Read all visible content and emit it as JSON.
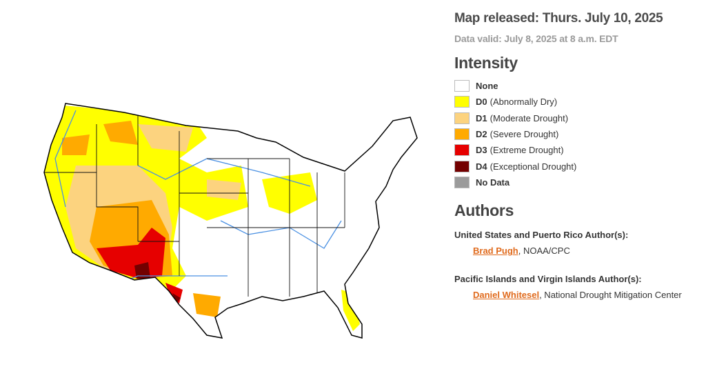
{
  "header": {
    "map_released": "Map released: Thurs. July 10, 2025",
    "data_valid": "Data valid: July 8, 2025 at 8 a.m. EDT"
  },
  "legend": {
    "title": "Intensity",
    "items": [
      {
        "code": "None",
        "color": "#ffffff"
      },
      {
        "code": "D0",
        "description": "(Abnormally Dry)",
        "color": "#ffff00"
      },
      {
        "code": "D1",
        "description": "(Moderate Drought)",
        "color": "#fcd37f"
      },
      {
        "code": "D2",
        "description": "(Severe Drought)",
        "color": "#ffaa00"
      },
      {
        "code": "D3",
        "description": "(Extreme Drought)",
        "color": "#e60000"
      },
      {
        "code": "D4",
        "description": "(Exceptional Drought)",
        "color": "#730000"
      },
      {
        "code": "No Data",
        "color": "#9b9b9b"
      }
    ]
  },
  "authors": {
    "title": "Authors",
    "sections": [
      {
        "label": "United States and Puerto Rico Author(s):",
        "name": "Brad Pugh",
        "affiliation": ", NOAA/CPC"
      },
      {
        "label": "Pacific Islands and Virgin Islands Author(s):",
        "name": "Daniel Whitesel",
        "affiliation": ", National Drought Mitigation Center"
      }
    ]
  }
}
